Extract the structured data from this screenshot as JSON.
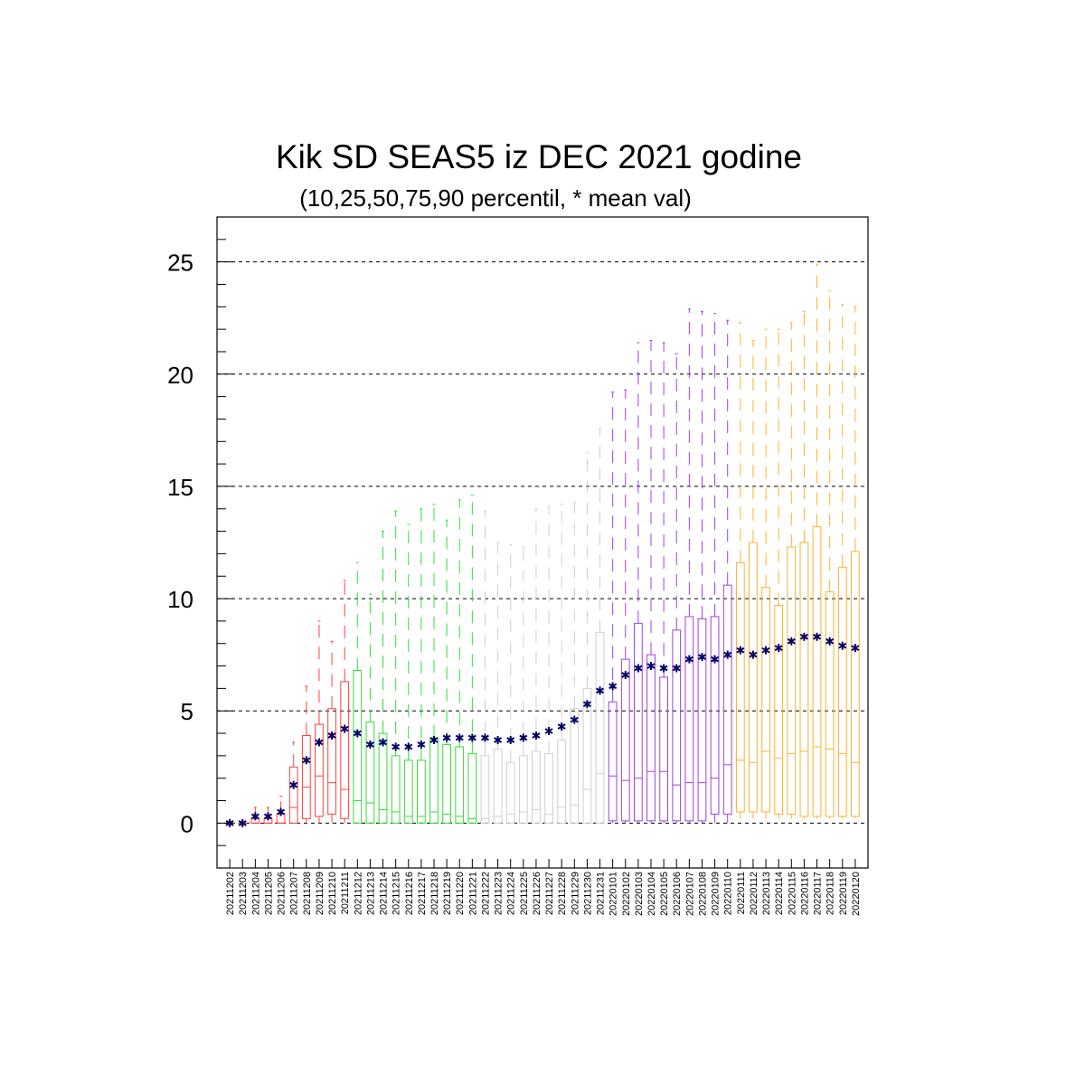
{
  "chart_data": {
    "type": "box",
    "title": "Kik SD SEAS5 iz DEC 2021 godine",
    "subtitle": "(10,25,50,75,90 percentil, * mean val)",
    "xlabel": "",
    "ylabel": "",
    "ylim": [
      -2,
      27
    ],
    "yticks": [
      0,
      5,
      10,
      15,
      20,
      25
    ],
    "grid": "horizontal dashed at major y ticks",
    "mean_marker": "*",
    "colors": {
      "red": "#ff4040",
      "green": "#33dd33",
      "gray": "#cfcfcf",
      "purple": "#a040e0",
      "orange": "#ffb030",
      "mean": "#000066"
    },
    "categories": [
      "20211202",
      "20211203",
      "20211204",
      "20211205",
      "20211206",
      "20211207",
      "20211208",
      "20211209",
      "20211210",
      "20211211",
      "20211212",
      "20211213",
      "20211214",
      "20211215",
      "20211216",
      "20211217",
      "20211218",
      "20211219",
      "20211220",
      "20211221",
      "20211222",
      "20211223",
      "20211224",
      "20211225",
      "20211226",
      "20211227",
      "20211228",
      "20211229",
      "20211230",
      "20211231",
      "20220101",
      "20220102",
      "20220103",
      "20220104",
      "20220105",
      "20220106",
      "20220107",
      "20220108",
      "20220109",
      "20220110",
      "20220111",
      "20220112",
      "20220113",
      "20220114",
      "20220115",
      "20220116",
      "20220117",
      "20220118",
      "20220119",
      "20220120"
    ],
    "box_colors": [
      "red",
      "red",
      "red",
      "red",
      "red",
      "red",
      "red",
      "red",
      "red",
      "red",
      "green",
      "green",
      "green",
      "green",
      "green",
      "green",
      "green",
      "green",
      "green",
      "green",
      "gray",
      "gray",
      "gray",
      "gray",
      "gray",
      "gray",
      "gray",
      "gray",
      "gray",
      "gray",
      "purple",
      "purple",
      "purple",
      "purple",
      "purple",
      "purple",
      "purple",
      "purple",
      "purple",
      "purple",
      "orange",
      "orange",
      "orange",
      "orange",
      "orange",
      "orange",
      "orange",
      "orange",
      "orange",
      "orange"
    ],
    "p10": [
      0,
      0,
      0,
      0,
      0,
      0,
      0,
      0,
      0,
      0,
      0,
      0,
      0,
      0,
      0,
      0,
      0,
      0,
      0,
      0,
      0,
      0,
      0,
      0,
      0,
      0,
      0,
      0,
      0,
      0,
      0,
      0,
      0,
      0,
      0,
      0,
      0,
      0,
      0,
      0,
      0.2,
      0.2,
      0.2,
      0.2,
      0.2,
      0.2,
      0.2,
      0.2,
      0.2,
      0.2
    ],
    "p25": [
      0,
      0,
      0,
      0,
      0,
      0,
      0.2,
      0.3,
      0.4,
      0.2,
      0,
      0,
      0,
      0,
      0,
      0,
      0,
      0,
      0,
      0,
      0,
      0,
      0,
      0,
      0,
      0,
      0,
      0,
      0,
      0,
      0.1,
      0.1,
      0.1,
      0.1,
      0.1,
      0.1,
      0.1,
      0.1,
      0.4,
      0.4,
      0.5,
      0.5,
      0.5,
      0.4,
      0.4,
      0.3,
      0.3,
      0.3,
      0.3,
      0.3
    ],
    "p50": [
      0,
      0,
      0,
      0,
      0,
      0.7,
      1.6,
      2.1,
      1.8,
      1.5,
      1.0,
      0.9,
      0.6,
      0.5,
      0.3,
      0.3,
      0.5,
      0.4,
      0.3,
      0.2,
      0.2,
      0.3,
      0.4,
      0.5,
      0.6,
      0.4,
      0.7,
      0.8,
      1.5,
      2.2,
      2.1,
      1.9,
      2.0,
      2.3,
      2.3,
      1.7,
      1.8,
      1.8,
      2.0,
      2.6,
      2.8,
      2.7,
      3.2,
      2.9,
      3.1,
      3.2,
      3.4,
      3.3,
      3.1,
      2.7
    ],
    "p75": [
      0,
      0,
      0.2,
      0.2,
      0.4,
      2.5,
      3.9,
      4.4,
      5.1,
      6.3,
      6.8,
      4.5,
      4.0,
      3.0,
      2.8,
      2.8,
      3.8,
      3.5,
      3.4,
      3.1,
      3.0,
      3.3,
      2.7,
      3.0,
      3.2,
      3.1,
      3.7,
      5.1,
      6.0,
      8.5,
      5.4,
      7.3,
      8.9,
      7.5,
      6.5,
      8.6,
      9.2,
      9.1,
      9.2,
      10.6,
      11.6,
      12.5,
      10.5,
      9.7,
      12.3,
      12.5,
      13.2,
      10.3,
      11.4,
      12.1
    ],
    "p90": [
      0,
      0,
      0.7,
      0.7,
      1.2,
      3.6,
      6.1,
      9.0,
      8.1,
      10.8,
      11.6,
      10.2,
      13.0,
      13.9,
      13.3,
      14.0,
      14.2,
      13.5,
      14.4,
      14.6,
      13.9,
      12.5,
      12.4,
      12.3,
      14.0,
      14.1,
      14.2,
      14.3,
      16.5,
      17.6,
      19.2,
      19.3,
      21.4,
      21.5,
      21.4,
      20.9,
      22.9,
      22.8,
      22.7,
      22.4,
      22.3,
      21.5,
      22.0,
      22.0,
      22.3,
      22.8,
      24.9,
      23.7,
      23.1,
      23.0
    ],
    "mean": [
      0,
      0,
      0.3,
      0.3,
      0.5,
      1.7,
      2.8,
      3.6,
      3.9,
      4.2,
      4.0,
      3.5,
      3.6,
      3.4,
      3.4,
      3.5,
      3.7,
      3.8,
      3.8,
      3.8,
      3.8,
      3.7,
      3.7,
      3.8,
      3.9,
      4.1,
      4.3,
      4.6,
      5.3,
      5.9,
      6.1,
      6.6,
      6.9,
      7.0,
      6.9,
      6.9,
      7.3,
      7.4,
      7.3,
      7.5,
      7.7,
      7.5,
      7.7,
      7.8,
      8.1,
      8.3,
      8.3,
      8.1,
      7.9,
      7.8
    ]
  }
}
